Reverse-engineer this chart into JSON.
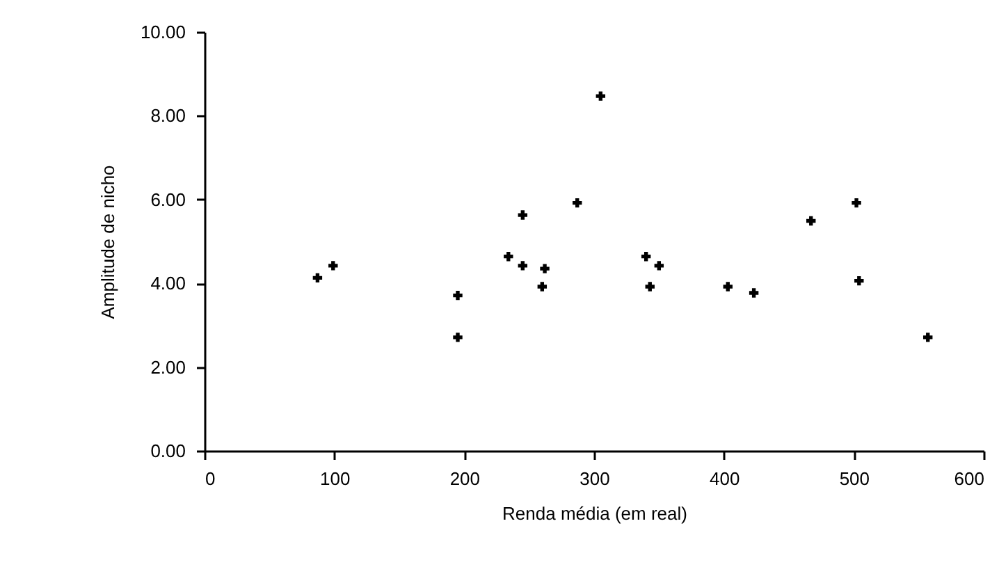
{
  "chart_data": {
    "type": "scatter",
    "xlabel": "Renda média (em real)",
    "ylabel": "Amplitude de nicho",
    "x": [
      87,
      99,
      195,
      195,
      234,
      245,
      245,
      262,
      260,
      287,
      305,
      340,
      350,
      343,
      403,
      423,
      467,
      502,
      504,
      557
    ],
    "series": [
      {
        "color": "#000000",
        "values": [
          4.13,
          4.42,
          3.71,
          2.71,
          4.64,
          5.63,
          4.42,
          4.35,
          3.92,
          5.92,
          8.47,
          4.64,
          4.42,
          3.92,
          3.92,
          3.77,
          5.49,
          5.92,
          4.06,
          2.71
        ]
      }
    ],
    "xlim": [
      0,
      600
    ],
    "xticks": [
      0,
      100,
      200,
      300,
      400,
      500,
      600
    ],
    "ylim": [
      0,
      10
    ],
    "yticks": [
      {
        "value": 0,
        "label": "0.00"
      },
      {
        "value": 2,
        "label": "2.00"
      },
      {
        "value": 4,
        "label": "4.00"
      },
      {
        "value": 6,
        "label": "6.00"
      },
      {
        "value": 8,
        "label": "8.00"
      },
      {
        "value": 10,
        "label": "10.00"
      }
    ],
    "grid": false,
    "marker": "cross"
  }
}
